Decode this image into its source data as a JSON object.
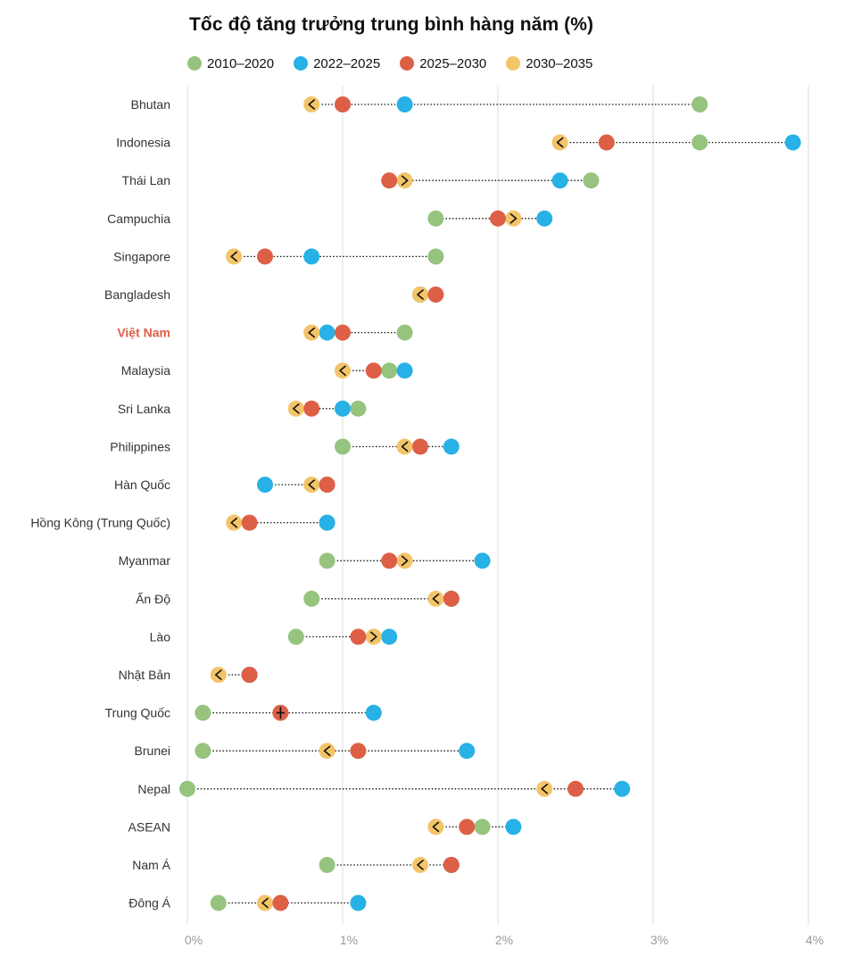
{
  "chart_data": {
    "type": "dumbbell",
    "title": "Tốc độ tăng trưởng trung bình hàng năm (%)",
    "xlim": [
      0,
      4
    ],
    "x_ticks": [
      {
        "value": 0,
        "label": "0%"
      },
      {
        "value": 1,
        "label": "1%"
      },
      {
        "value": 2,
        "label": "2%"
      },
      {
        "value": 3,
        "label": "3%"
      },
      {
        "value": 4,
        "label": "4%"
      }
    ],
    "grid": true,
    "legend_position": "top-left",
    "series": [
      {
        "key": "s2010",
        "name": "2010–2020",
        "color": "#96c37e"
      },
      {
        "key": "s2022",
        "name": "2022–2025",
        "color": "#27b1e6"
      },
      {
        "key": "s2025",
        "name": "2025–2030",
        "color": "#dd5f45"
      },
      {
        "key": "s2030",
        "name": "2030–2035",
        "color": "#f3c468"
      }
    ],
    "highlight_color": "#dd5f45",
    "rows": [
      {
        "label": "Bhutan",
        "s2010": 3.3,
        "s2022": 1.4,
        "s2025": 1.0,
        "s2030": 0.8
      },
      {
        "label": "Indonesia",
        "s2010": 3.3,
        "s2022": 3.9,
        "s2025": 2.7,
        "s2030": 2.4
      },
      {
        "label": "Thái Lan",
        "s2010": 2.6,
        "s2022": 2.4,
        "s2025": 1.3,
        "s2030": 1.4
      },
      {
        "label": "Campuchia",
        "s2010": 1.6,
        "s2022": 2.3,
        "s2025": 2.0,
        "s2030": 2.1
      },
      {
        "label": "Singapore",
        "s2010": 1.6,
        "s2022": 0.8,
        "s2025": 0.5,
        "s2030": 0.3
      },
      {
        "label": "Bangladesh",
        "s2010": 1.5,
        "s2022": 1.5,
        "s2025": 1.6,
        "s2030": 1.5
      },
      {
        "label": "Việt Nam",
        "s2010": 1.4,
        "s2022": 0.9,
        "s2025": 1.0,
        "s2030": 0.8,
        "highlight": true
      },
      {
        "label": "Malaysia",
        "s2010": 1.3,
        "s2022": 1.4,
        "s2025": 1.2,
        "s2030": 1.0
      },
      {
        "label": "Sri Lanka",
        "s2010": 1.1,
        "s2022": 1.0,
        "s2025": 0.8,
        "s2030": 0.7
      },
      {
        "label": "Philippines",
        "s2010": 1.0,
        "s2022": 1.7,
        "s2025": 1.5,
        "s2030": 1.4
      },
      {
        "label": "Hàn Quốc",
        "s2010": 0.9,
        "s2022": 0.5,
        "s2025": 0.9,
        "s2030": 0.8
      },
      {
        "label": "Hồng Kông (Trung Quốc)",
        "s2010": 0.9,
        "s2022": 0.9,
        "s2025": 0.4,
        "s2030": 0.3
      },
      {
        "label": "Myanmar",
        "s2010": 0.9,
        "s2022": 1.9,
        "s2025": 1.3,
        "s2030": 1.4
      },
      {
        "label": "Ấn Độ",
        "s2010": 0.8,
        "s2022": 1.7,
        "s2025": 1.7,
        "s2030": 1.6
      },
      {
        "label": "Lào",
        "s2010": 0.7,
        "s2022": 1.3,
        "s2025": 1.1,
        "s2030": 1.2
      },
      {
        "label": "Nhật Bản",
        "s2010": 0.4,
        "s2022": 0.4,
        "s2025": 0.4,
        "s2030": 0.2
      },
      {
        "label": "Trung Quốc",
        "s2010": 0.1,
        "s2022": 1.2,
        "s2025": 0.6,
        "s2030": 0.6
      },
      {
        "label": "Brunei",
        "s2010": 0.1,
        "s2022": 1.8,
        "s2025": 1.1,
        "s2030": 0.9
      },
      {
        "label": "Nepal",
        "s2010": 0.0,
        "s2022": 2.8,
        "s2025": 2.5,
        "s2030": 2.3
      },
      {
        "label": "ASEAN",
        "s2010": 1.9,
        "s2022": 2.1,
        "s2025": 1.8,
        "s2030": 1.6
      },
      {
        "label": "Nam Á",
        "s2010": 0.9,
        "s2022": 1.7,
        "s2025": 1.7,
        "s2030": 1.5
      },
      {
        "label": "Đông Á",
        "s2010": 0.2,
        "s2022": 1.1,
        "s2025": 0.6,
        "s2030": 0.5
      }
    ]
  }
}
